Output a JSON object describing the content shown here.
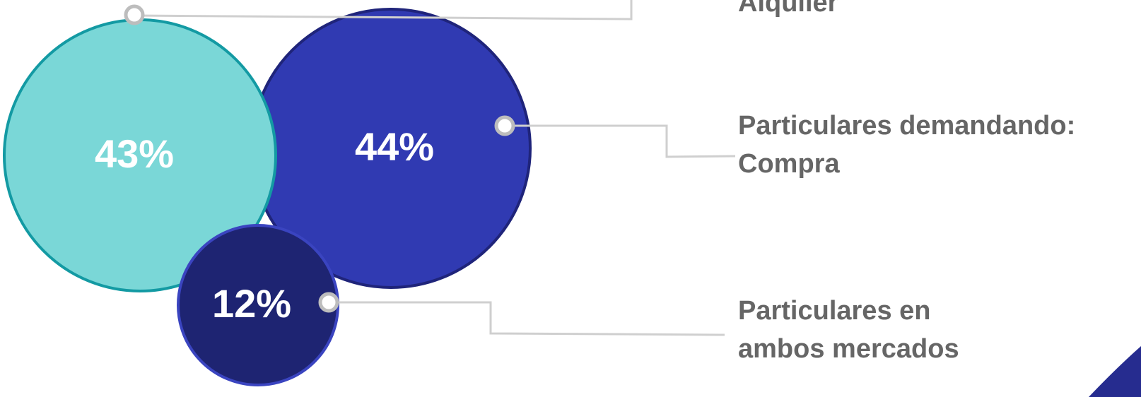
{
  "bubbles": [
    {
      "label": "43%",
      "legend": [
        "Alquiler"
      ]
    },
    {
      "label": "44%",
      "legend": [
        "Particulares demandando:",
        "Compra"
      ]
    },
    {
      "label": "12%",
      "legend": [
        "Particulares en",
        "ambos mercados"
      ]
    }
  ]
}
